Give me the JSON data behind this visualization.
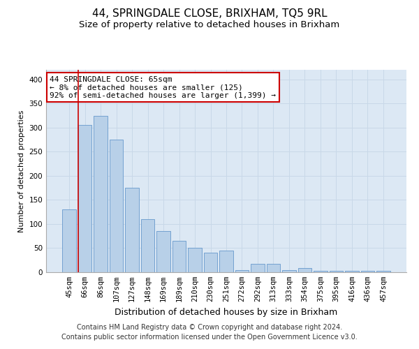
{
  "title": "44, SPRINGDALE CLOSE, BRIXHAM, TQ5 9RL",
  "subtitle": "Size of property relative to detached houses in Brixham",
  "xlabel": "Distribution of detached houses by size in Brixham",
  "ylabel": "Number of detached properties",
  "categories": [
    "45sqm",
    "66sqm",
    "86sqm",
    "107sqm",
    "127sqm",
    "148sqm",
    "169sqm",
    "189sqm",
    "210sqm",
    "230sqm",
    "251sqm",
    "272sqm",
    "292sqm",
    "313sqm",
    "333sqm",
    "354sqm",
    "375sqm",
    "395sqm",
    "416sqm",
    "436sqm",
    "457sqm"
  ],
  "values": [
    130,
    305,
    325,
    275,
    175,
    110,
    85,
    65,
    50,
    40,
    45,
    5,
    17,
    17,
    5,
    8,
    3,
    3,
    3,
    3,
    3
  ],
  "bar_color": "#b8d0e8",
  "bar_edge_color": "#6699cc",
  "annotation_box_text": "44 SPRINGDALE CLOSE: 65sqm\n← 8% of detached houses are smaller (125)\n92% of semi-detached houses are larger (1,399) →",
  "annotation_box_color": "#ffffff",
  "annotation_box_edge_color": "#cc0000",
  "vline_color": "#cc0000",
  "ylim": [
    0,
    420
  ],
  "yticks": [
    0,
    50,
    100,
    150,
    200,
    250,
    300,
    350,
    400
  ],
  "grid_color": "#c8d8e8",
  "bg_color": "#dce8f4",
  "footer_line1": "Contains HM Land Registry data © Crown copyright and database right 2024.",
  "footer_line2": "Contains public sector information licensed under the Open Government Licence v3.0.",
  "title_fontsize": 11,
  "subtitle_fontsize": 9.5,
  "xlabel_fontsize": 9,
  "ylabel_fontsize": 8,
  "tick_fontsize": 7.5,
  "footer_fontsize": 7
}
